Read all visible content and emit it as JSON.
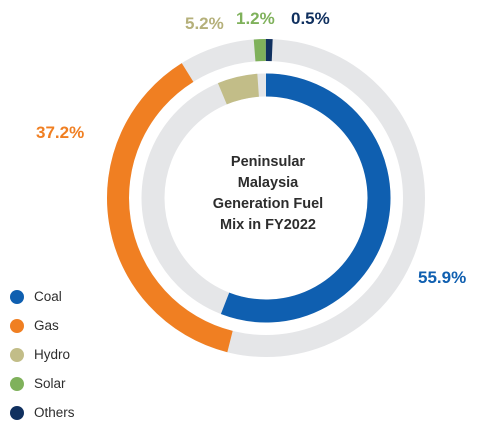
{
  "chart_data": {
    "type": "pie",
    "title_lines": [
      "Peninsular",
      "Malaysia",
      "Generation Fuel",
      "Mix in FY2022"
    ],
    "series": [
      {
        "name": "Coal",
        "value": 55.9,
        "label": "55.9%",
        "color": "#0f5fb0"
      },
      {
        "name": "Gas",
        "value": 37.2,
        "label": "37.2%",
        "color": "#f07f22"
      },
      {
        "name": "Hydro",
        "value": 5.2,
        "label": "5.2%",
        "color": "#c2bd88"
      },
      {
        "name": "Solar",
        "value": 1.2,
        "label": "1.2%",
        "color": "#7fb15b"
      },
      {
        "name": "Others",
        "value": 0.5,
        "label": "0.5%",
        "color": "#10305f"
      }
    ],
    "legend_position": "bottom-left",
    "track_color": "#e5e6e8",
    "label_colors": {
      "Coal": "#0f5fb0",
      "Gas": "#f07f22",
      "Hydro": "#b5b07a",
      "Solar": "#7fb15b",
      "Others": "#10305f"
    }
  }
}
